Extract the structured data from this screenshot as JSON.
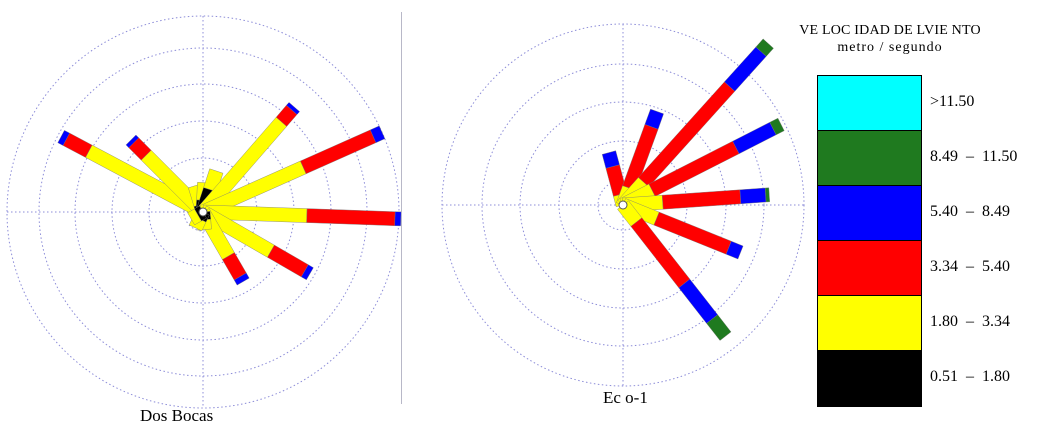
{
  "chart_data": [
    {
      "type": "wind-rose",
      "title": "Dos Bocas",
      "speed_bins": [
        "0.51 – 1.80",
        "1.80 – 3.34",
        "3.34 – 5.40"
      ],
      "petals": [
        {
          "direction_deg": 298,
          "segments": [
            0,
            0.66,
            0.13,
            0.03
          ]
        },
        {
          "direction_deg": 315,
          "segments": [
            0,
            0.41,
            0.09,
            0.02
          ]
        },
        {
          "direction_deg": 343,
          "segments": [
            0.04,
            0.1
          ]
        },
        {
          "direction_deg": 3,
          "segments": [
            0.06,
            0.09
          ]
        },
        {
          "direction_deg": 18,
          "segments": [
            0.12,
            0.1
          ]
        },
        {
          "direction_deg": 41,
          "segments": [
            0,
            0.61,
            0.08,
            0.02
          ]
        },
        {
          "direction_deg": 66,
          "segments": [
            0,
            0.56,
            0.39,
            0.05
          ]
        },
        {
          "direction_deg": 92,
          "segments": [
            0,
            0.53,
            0.45,
            0.03
          ]
        },
        {
          "direction_deg": 120,
          "segments": [
            0,
            0.4,
            0.2,
            0.03
          ]
        },
        {
          "direction_deg": 150,
          "segments": [
            0,
            0.26,
            0.12,
            0.03
          ]
        },
        {
          "direction_deg": 175,
          "segments": [
            0.04,
            0.05
          ]
        },
        {
          "direction_deg": 205,
          "segments": [
            0.04,
            0.05
          ]
        },
        {
          "direction_deg": 240,
          "segments": [
            0.03,
            0.04
          ]
        }
      ]
    },
    {
      "type": "wind-rose",
      "title": "Eco-1",
      "speed_bins": [
        "3.34 – 5.40",
        "5.40 – 8.49",
        "8.49 – 11.50",
        ">11.50"
      ],
      "petals": [
        {
          "direction_deg": 345,
          "segments": [
            0,
            0.06,
            0.16,
            0.08
          ]
        },
        {
          "direction_deg": 20,
          "segments": [
            0,
            0.1,
            0.36,
            0.09
          ]
        },
        {
          "direction_deg": 42,
          "segments": [
            0,
            0.17,
            0.71,
            0.26,
            0.06
          ]
        },
        {
          "direction_deg": 63,
          "segments": [
            0,
            0.18,
            0.52,
            0.23,
            0.05
          ]
        },
        {
          "direction_deg": 86,
          "segments": [
            0,
            0.22,
            0.43,
            0.14,
            0.02
          ]
        },
        {
          "direction_deg": 112,
          "segments": [
            0,
            0.2,
            0.43,
            0.07
          ]
        },
        {
          "direction_deg": 142,
          "segments": [
            0,
            0.12,
            0.43,
            0.25,
            0.12
          ]
        }
      ]
    }
  ],
  "legend": {
    "title": "VE LOC IDAD DE LVIE NTO",
    "subtitle": "metro / segundo",
    "items": [
      {
        "label": ">11.50",
        "color": "#00ffff"
      },
      {
        "label": "8.49  –  11.50",
        "color": "#1f7a1f"
      },
      {
        "label": "5.40  –  8.49",
        "color": "#0000ff"
      },
      {
        "label": "3.34  –  5.40",
        "color": "#ff0000"
      },
      {
        "label": "1.80  –  3.34",
        "color": "#ffff00"
      },
      {
        "label": "0.51  –  1.80",
        "color": "#000000"
      }
    ]
  },
  "captions": {
    "left": "Dos Bocas",
    "right": "Ec o-1"
  }
}
